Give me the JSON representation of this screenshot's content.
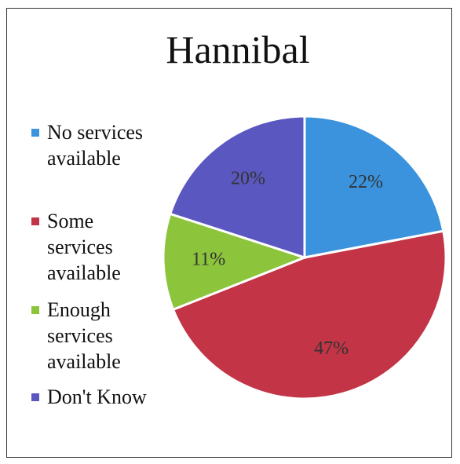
{
  "chart_data": {
    "type": "pie",
    "title": "Hannibal",
    "categories": [
      "No services available",
      "Some services available",
      "Enough services available",
      "Don't Know"
    ],
    "values": [
      22,
      47,
      11,
      20
    ],
    "value_labels": [
      "22%",
      "47%",
      "11%",
      "20%"
    ],
    "colors": [
      "#3a93dc",
      "#c23446",
      "#8cc43c",
      "#5a57c0"
    ],
    "legend": "left"
  }
}
